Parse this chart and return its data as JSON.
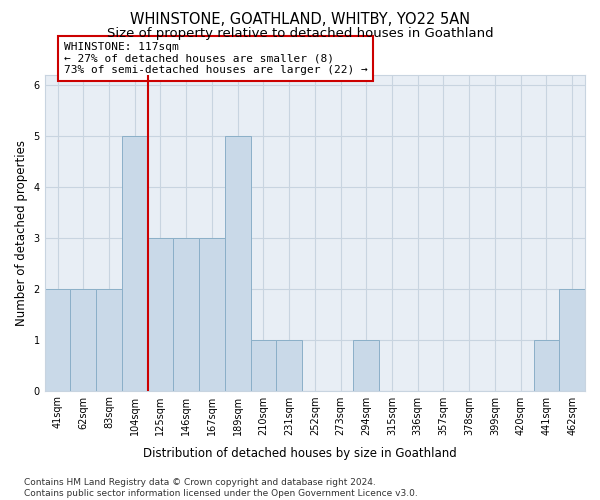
{
  "title": "WHINSTONE, GOATHLAND, WHITBY, YO22 5AN",
  "subtitle": "Size of property relative to detached houses in Goathland",
  "xlabel": "Distribution of detached houses by size in Goathland",
  "ylabel": "Number of detached properties",
  "categories": [
    "41sqm",
    "62sqm",
    "83sqm",
    "104sqm",
    "125sqm",
    "146sqm",
    "167sqm",
    "189sqm",
    "210sqm",
    "231sqm",
    "252sqm",
    "273sqm",
    "294sqm",
    "315sqm",
    "336sqm",
    "357sqm",
    "378sqm",
    "399sqm",
    "420sqm",
    "441sqm",
    "462sqm"
  ],
  "values": [
    2,
    2,
    2,
    5,
    3,
    3,
    3,
    5,
    1,
    1,
    0,
    0,
    1,
    0,
    0,
    0,
    0,
    0,
    0,
    1,
    2
  ],
  "bar_color": "#c9d9e8",
  "bar_edge_color": "#8bafc8",
  "vline_index": 4,
  "vline_color": "#cc0000",
  "annotation_box_text": "WHINSTONE: 117sqm\n← 27% of detached houses are smaller (8)\n73% of semi-detached houses are larger (22) →",
  "ylim": [
    0,
    6.2
  ],
  "yticks": [
    0,
    1,
    2,
    3,
    4,
    5,
    6
  ],
  "grid_color": "#c8d4e0",
  "background_color": "#e8eef5",
  "footnote": "Contains HM Land Registry data © Crown copyright and database right 2024.\nContains public sector information licensed under the Open Government Licence v3.0.",
  "title_fontsize": 10.5,
  "subtitle_fontsize": 9.5,
  "annotation_fontsize": 8,
  "axis_label_fontsize": 8.5,
  "tick_fontsize": 7,
  "footnote_fontsize": 6.5
}
